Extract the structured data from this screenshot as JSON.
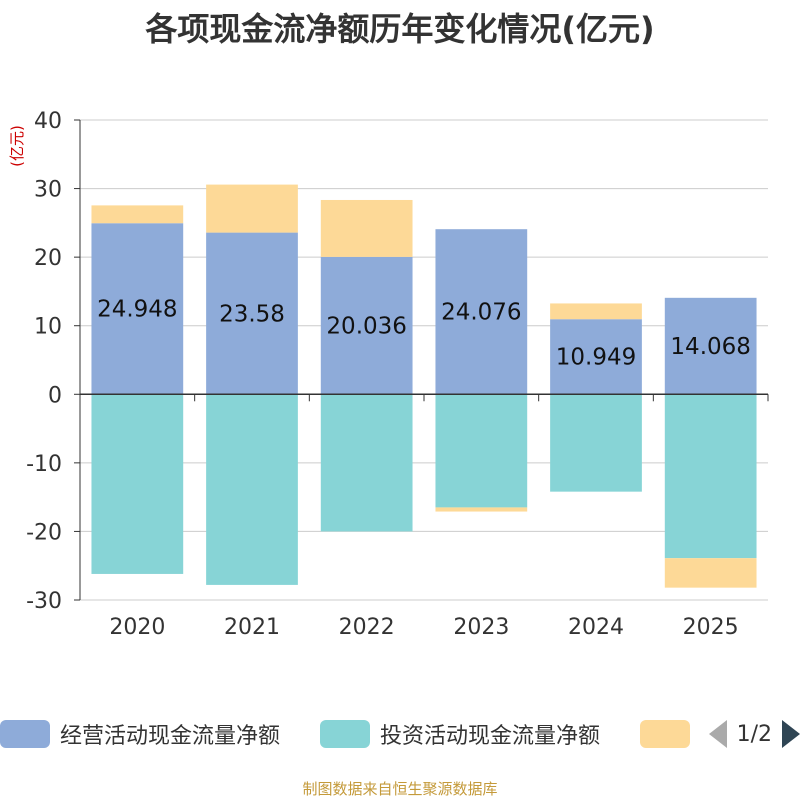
{
  "chart_data": {
    "type": "bar",
    "stacked": true,
    "title": "各项现金流净额历年变化情况(亿元)",
    "ylabel": "(亿元)",
    "ylim": [
      -30,
      40
    ],
    "yticks": [
      -30,
      -20,
      -10,
      0,
      10,
      20,
      30,
      40
    ],
    "categories": [
      "2020",
      "2021",
      "2022",
      "2023",
      "2024",
      "2025"
    ],
    "series": [
      {
        "name": "经营活动现金流量净额",
        "color": "#8eabd9",
        "values": [
          24.948,
          23.58,
          20.036,
          24.076,
          10.949,
          14.068
        ],
        "labels": [
          "24.948",
          "23.58",
          "20.036",
          "24.076",
          "10.949",
          "14.068"
        ]
      },
      {
        "name": "投资活动现金流量净额",
        "color": "#87d4d6",
        "values": [
          -26.2,
          -27.8,
          -20.0,
          -16.5,
          -14.2,
          -23.9
        ]
      },
      {
        "name": "",
        "color": "#fdd997",
        "values": [
          2.6,
          7.0,
          8.3,
          -0.6,
          2.3,
          -4.3
        ]
      }
    ]
  },
  "legend": {
    "page_text": "1/2"
  },
  "footer": "制图数据来自恒生聚源数据库"
}
